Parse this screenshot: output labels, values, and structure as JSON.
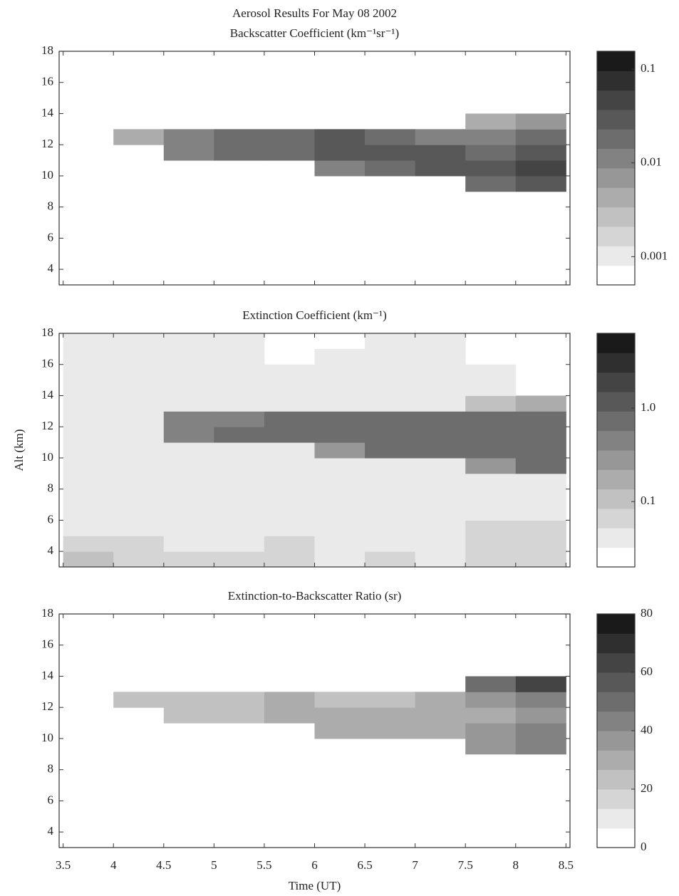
{
  "chart_data": [
    {
      "type": "heatmap",
      "title": "Aerosol Results For May 08 2002",
      "panel_title": "Backscatter Coefficient (km⁻¹sr⁻¹)",
      "xbins": [
        3.5,
        4,
        4.5,
        5,
        5.5,
        6,
        6.5,
        7,
        7.5,
        8,
        8.5
      ],
      "ybins": [
        3,
        4,
        5,
        6,
        7,
        8,
        9,
        10,
        11,
        12,
        13,
        14,
        15,
        16,
        17,
        18
      ],
      "z": [
        [
          null,
          null,
          null,
          null,
          null,
          null,
          null,
          null,
          null,
          null
        ],
        [
          null,
          null,
          null,
          null,
          null,
          null,
          null,
          null,
          null,
          null
        ],
        [
          null,
          null,
          null,
          null,
          null,
          null,
          null,
          null,
          null,
          null
        ],
        [
          null,
          null,
          null,
          null,
          null,
          null,
          null,
          null,
          null,
          null
        ],
        [
          null,
          null,
          null,
          null,
          null,
          null,
          null,
          null,
          null,
          null
        ],
        [
          null,
          null,
          null,
          null,
          null,
          null,
          null,
          null,
          null,
          null
        ],
        [
          null,
          null,
          null,
          null,
          null,
          null,
          null,
          null,
          0.015,
          0.03
        ],
        [
          null,
          null,
          null,
          null,
          null,
          0.01,
          0.02,
          0.03,
          0.03,
          0.04
        ],
        [
          null,
          null,
          0.01,
          0.02,
          0.02,
          0.03,
          0.03,
          0.03,
          0.02,
          0.03
        ],
        [
          null,
          0.005,
          0.01,
          0.02,
          0.02,
          0.03,
          0.02,
          0.01,
          0.01,
          0.02
        ],
        [
          null,
          null,
          null,
          null,
          null,
          null,
          null,
          null,
          0.005,
          0.008
        ],
        [
          null,
          null,
          null,
          null,
          null,
          null,
          null,
          null,
          null,
          null
        ],
        [
          null,
          null,
          null,
          null,
          null,
          null,
          null,
          null,
          null,
          null
        ],
        [
          null,
          null,
          null,
          null,
          null,
          null,
          null,
          null,
          null,
          null
        ],
        [
          null,
          null,
          null,
          null,
          null,
          null,
          null,
          null,
          null,
          null
        ]
      ],
      "xlim": [
        3.46,
        8.54
      ],
      "xticks": [
        3.5,
        4,
        4.5,
        5,
        5.5,
        6,
        6.5,
        7,
        7.5,
        8,
        8.5
      ],
      "ylim": [
        3,
        18
      ],
      "yticks": [
        4,
        6,
        8,
        10,
        12,
        14,
        16,
        18
      ],
      "clim": [
        0.0005,
        0.155
      ],
      "log_color": true,
      "colorbar_ticks": [
        0.001,
        0.01,
        0.1
      ],
      "colors": [
        "#ffffff",
        "#1a1a1a"
      ]
    },
    {
      "type": "heatmap",
      "panel_title": "Extinction Coefficient (km⁻¹)",
      "ylabel": "Alt (km)",
      "xbins": [
        3.5,
        4,
        4.5,
        5,
        5.5,
        6,
        6.5,
        7,
        7.5,
        8,
        8.5
      ],
      "ybins": [
        3,
        4,
        5,
        6,
        7,
        8,
        9,
        10,
        11,
        12,
        13,
        14,
        15,
        16,
        17,
        18
      ],
      "z": [
        [
          0.09,
          0.08,
          0.07,
          0.06,
          0.07,
          0.05,
          0.06,
          0.05,
          0.08,
          0.08
        ],
        [
          0.07,
          0.06,
          0.05,
          0.05,
          0.06,
          0.05,
          0.05,
          0.05,
          0.07,
          0.07
        ],
        [
          0.05,
          0.04,
          0.04,
          0.04,
          0.04,
          0.04,
          0.04,
          0.04,
          0.06,
          0.06
        ],
        [
          0.04,
          0.04,
          0.04,
          0.04,
          0.04,
          0.04,
          0.04,
          0.04,
          0.04,
          0.05
        ],
        [
          0.04,
          0.04,
          0.04,
          0.04,
          0.04,
          0.04,
          0.04,
          0.04,
          0.04,
          0.04
        ],
        [
          0.04,
          0.04,
          0.04,
          0.04,
          0.04,
          0.04,
          0.04,
          0.04,
          0.04,
          0.04
        ],
        [
          0.04,
          0.04,
          0.04,
          0.04,
          0.04,
          0.04,
          0.04,
          0.04,
          0.3,
          0.6
        ],
        [
          0.04,
          0.04,
          0.04,
          0.04,
          0.04,
          0.3,
          0.6,
          0.7,
          0.7,
          0.8
        ],
        [
          0.04,
          0.04,
          0.5,
          0.7,
          0.8,
          0.9,
          0.8,
          0.8,
          0.7,
          0.8
        ],
        [
          0.04,
          0.04,
          0.4,
          0.5,
          0.7,
          0.8,
          0.7,
          0.6,
          0.6,
          0.7
        ],
        [
          0.04,
          0.04,
          0.04,
          0.04,
          0.04,
          0.04,
          0.04,
          0.05,
          0.1,
          0.15
        ],
        [
          0.04,
          0.04,
          0.04,
          0.04,
          0.04,
          0.04,
          0.04,
          0.04,
          0.04,
          null
        ],
        [
          0.04,
          0.04,
          0.04,
          0.04,
          0.04,
          0.04,
          0.04,
          0.04,
          0.04,
          null
        ],
        [
          0.04,
          0.04,
          0.04,
          0.04,
          null,
          0.04,
          0.04,
          0.04,
          null,
          null
        ],
        [
          0.04,
          0.04,
          0.04,
          0.04,
          null,
          null,
          0.04,
          0.04,
          null,
          null
        ]
      ],
      "xlim": [
        3.46,
        8.54
      ],
      "xticks": [
        3.5,
        4,
        4.5,
        5,
        5.5,
        6,
        6.5,
        7,
        7.5,
        8,
        8.5
      ],
      "ylim": [
        3,
        18
      ],
      "yticks": [
        4,
        6,
        8,
        10,
        12,
        14,
        16,
        18
      ],
      "clim": [
        0.02,
        6.3
      ],
      "log_color": true,
      "colorbar_ticks": [
        0.1,
        {
          "value": 1,
          "label": "1.0"
        }
      ],
      "colors": [
        "#ffffff",
        "#1a1a1a"
      ]
    },
    {
      "type": "heatmap",
      "panel_title": "Extinction-to-Backscatter Ratio (sr)",
      "xlabel": "Time (UT)",
      "xbins": [
        3.5,
        4,
        4.5,
        5,
        5.5,
        6,
        6.5,
        7,
        7.5,
        8,
        8.5
      ],
      "ybins": [
        3,
        4,
        5,
        6,
        7,
        8,
        9,
        10,
        11,
        12,
        13,
        14,
        15,
        16,
        17,
        18
      ],
      "z": [
        [
          null,
          null,
          null,
          null,
          null,
          null,
          null,
          null,
          null,
          null
        ],
        [
          null,
          null,
          null,
          null,
          null,
          null,
          null,
          null,
          null,
          null
        ],
        [
          null,
          null,
          null,
          null,
          null,
          null,
          null,
          null,
          null,
          null
        ],
        [
          null,
          null,
          null,
          null,
          null,
          null,
          null,
          null,
          null,
          null
        ],
        [
          null,
          null,
          null,
          null,
          null,
          null,
          null,
          null,
          null,
          null
        ],
        [
          null,
          null,
          null,
          null,
          null,
          null,
          null,
          null,
          null,
          null
        ],
        [
          null,
          null,
          null,
          null,
          null,
          null,
          null,
          null,
          35,
          40
        ],
        [
          null,
          null,
          null,
          null,
          null,
          30,
          30,
          30,
          35,
          40
        ],
        [
          null,
          null,
          25,
          25,
          30,
          30,
          30,
          30,
          30,
          35
        ],
        [
          null,
          20,
          25,
          25,
          30,
          25,
          25,
          30,
          35,
          45
        ],
        [
          null,
          null,
          null,
          null,
          null,
          null,
          null,
          null,
          50,
          60
        ],
        [
          null,
          null,
          null,
          null,
          null,
          null,
          null,
          null,
          null,
          null
        ],
        [
          null,
          null,
          null,
          null,
          null,
          null,
          null,
          null,
          null,
          null
        ],
        [
          null,
          null,
          null,
          null,
          null,
          null,
          null,
          null,
          null,
          null
        ],
        [
          null,
          null,
          null,
          null,
          null,
          null,
          null,
          null,
          null,
          null
        ]
      ],
      "xlim": [
        3.46,
        8.54
      ],
      "xticks": [
        3.5,
        4,
        4.5,
        5,
        5.5,
        6,
        6.5,
        7,
        7.5,
        8,
        8.5
      ],
      "xtick_labels": true,
      "ylim": [
        3,
        18
      ],
      "yticks": [
        4,
        6,
        8,
        10,
        12,
        14,
        16,
        18
      ],
      "clim": [
        0,
        80
      ],
      "log_color": false,
      "colorbar_ticks": [
        0,
        20,
        40,
        60,
        80
      ],
      "colors": [
        "#ffffff",
        "#1a1a1a"
      ]
    }
  ]
}
